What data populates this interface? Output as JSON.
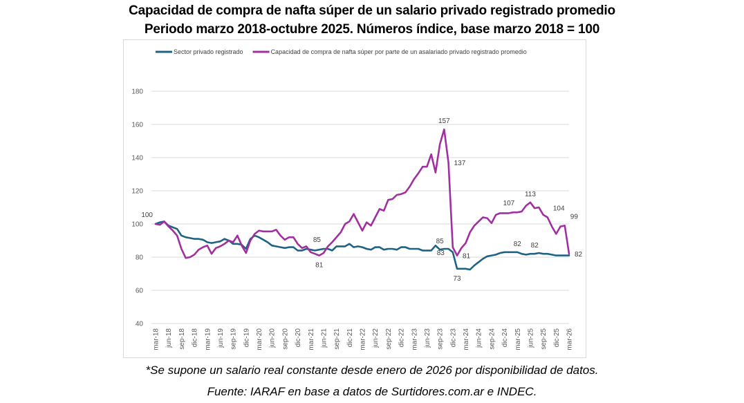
{
  "chart_data": {
    "type": "line",
    "title": "Capacidad de compra de nafta súper de un salario privado registrado promedio",
    "subtitle": "Periodo marzo 2018-octubre 2025.  Números índice, base marzo 2018 = 100",
    "xlabel": "",
    "ylabel": "",
    "ylim": [
      40,
      180
    ],
    "yticks": [
      40,
      60,
      80,
      100,
      120,
      140,
      160,
      180
    ],
    "grid": true,
    "legend_position": "top",
    "x_tick_labels": [
      "mar-18",
      "jun-18",
      "sep-18",
      "dic-18",
      "mar-19",
      "jun-19",
      "sep-19",
      "dic-19",
      "mar-20",
      "jun-20",
      "sep-20",
      "dic-20",
      "mar-21",
      "jun-21",
      "sep-21",
      "dic-21",
      "mar-22",
      "jun-22",
      "sep-22",
      "dic-22",
      "mar-23",
      "jun-23",
      "sep-23",
      "dic-23",
      "mar-24",
      "jun-24",
      "sep-24",
      "dic-24",
      "mar-25",
      "jun-25",
      "sep-25",
      "dic-25",
      "mar-26"
    ],
    "x_tick_every_months": 3,
    "x_start": "mar-18",
    "x_end": "mar-26",
    "series": [
      {
        "name": "Sector privado registrado",
        "color": "#1f6384",
        "values": [
          100,
          101,
          101.5,
          99,
          98,
          97,
          93,
          92,
          91.5,
          91,
          91,
          90.5,
          89,
          88.5,
          89,
          89.5,
          91,
          90,
          88,
          88,
          87.5,
          85,
          91,
          93,
          92,
          90.5,
          89,
          87,
          86.5,
          86,
          85.5,
          86,
          86,
          84,
          84,
          85,
          84.5,
          84,
          84.5,
          85,
          85,
          84,
          86.5,
          86.5,
          86.5,
          88,
          86,
          86.5,
          86,
          85,
          84.5,
          86,
          86,
          84.5,
          85,
          85,
          84.5,
          86,
          86,
          85,
          85,
          85,
          84,
          84,
          84,
          87,
          84.5,
          85,
          85,
          83,
          73,
          73,
          73,
          72.5,
          75,
          77,
          79,
          80.5,
          81,
          81.5,
          82.5,
          83,
          83,
          83,
          83,
          82,
          81.5,
          82,
          82,
          82.5,
          82,
          82,
          81.5,
          81,
          81,
          81,
          81
        ]
      },
      {
        "name": "Capacidad de compra de nafta súper por parte de un asalariado privado registrado promedio",
        "color": "#a0309f",
        "values": [
          100,
          99.5,
          101.5,
          98.5,
          96,
          93,
          85,
          79.5,
          80,
          81.5,
          84.5,
          86,
          87,
          82,
          85.5,
          86.5,
          88,
          90,
          89,
          93,
          87,
          82.5,
          90,
          94,
          96,
          95.5,
          95.5,
          95.5,
          96.5,
          93,
          90.5,
          92,
          92,
          88,
          85.5,
          86.5,
          83,
          82,
          81,
          82.5,
          86.5,
          89,
          92,
          95,
          100,
          101.5,
          106,
          101,
          96,
          101,
          99,
          104,
          109,
          108,
          114.5,
          115,
          117.5,
          118,
          119,
          122.5,
          127,
          130.5,
          134.5,
          134.5,
          142,
          131,
          148,
          157,
          137,
          86,
          81,
          85.5,
          88.5,
          95,
          99,
          101.5,
          104,
          103.5,
          100.5,
          105.5,
          106.5,
          106.5,
          106.5,
          107,
          107,
          107.5,
          111,
          113,
          109.5,
          110,
          105.5,
          104,
          98.5,
          94,
          98.5,
          99,
          82
        ]
      }
    ],
    "annotations": [
      {
        "series": 1,
        "index": 0,
        "label": "100",
        "pos": "above-left"
      },
      {
        "series": 0,
        "index": 39,
        "label": "85",
        "pos": "above-left"
      },
      {
        "series": 1,
        "index": 38,
        "label": "81",
        "pos": "below"
      },
      {
        "series": 0,
        "index": 66,
        "label": "85",
        "pos": "above"
      },
      {
        "series": 1,
        "index": 67,
        "label": "157",
        "pos": "above"
      },
      {
        "series": 1,
        "index": 68,
        "label": "137",
        "pos": "right"
      },
      {
        "series": 0,
        "index": 69,
        "label": "83",
        "pos": "left"
      },
      {
        "series": 0,
        "index": 70,
        "label": "73",
        "pos": "below"
      },
      {
        "series": 1,
        "index": 70,
        "label": "81",
        "pos": "right"
      },
      {
        "series": 1,
        "index": 84,
        "label": "107",
        "pos": "above-left"
      },
      {
        "series": 0,
        "index": 84,
        "label": "82",
        "pos": "above"
      },
      {
        "series": 1,
        "index": 87,
        "label": "113",
        "pos": "above"
      },
      {
        "series": 0,
        "index": 88,
        "label": "82",
        "pos": "above"
      },
      {
        "series": 1,
        "index": 91,
        "label": "104",
        "pos": "above-right"
      },
      {
        "series": 1,
        "index": 95,
        "label": "99",
        "pos": "above-right"
      },
      {
        "series": 1,
        "index": 96,
        "label": "82",
        "pos": "right"
      }
    ]
  },
  "footnotes": {
    "note": "*Se supone un salario real constante  desde enero de 2026 por disponibilidad de datos.",
    "source": "Fuente:  IARAF en base a datos de  Surtidores.com.ar  e INDEC."
  }
}
